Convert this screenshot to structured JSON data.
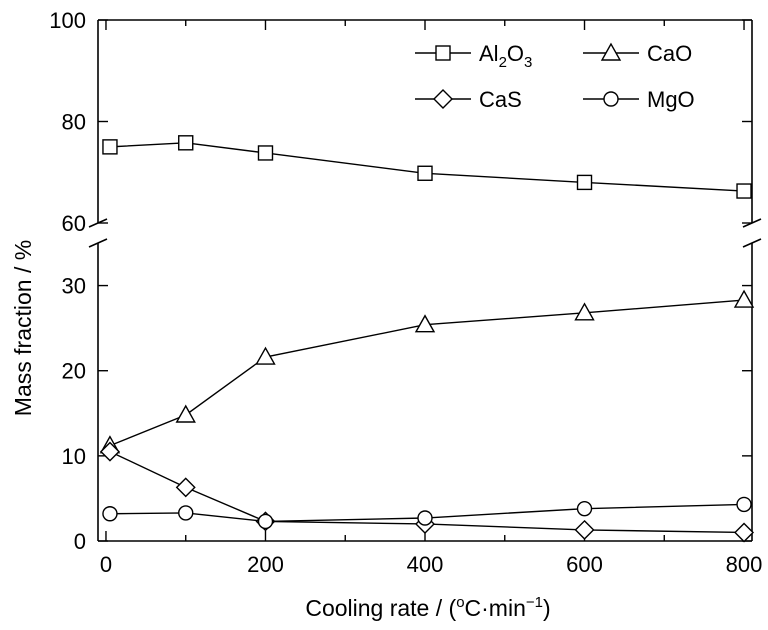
{
  "chart_data": {
    "type": "line",
    "xlabel": "Cooling rate / (",
    "xlabel_unit_sup": "o",
    "xlabel_unit_rest": "C·min",
    "xlabel_unit_exp": "−1",
    "xlabel_close": ")",
    "ylabel": "Mass fraction / %",
    "xlim": [
      -10,
      810
    ],
    "ylim_lower": [
      0,
      35
    ],
    "ylim_upper": [
      60,
      100
    ],
    "axis_break": true,
    "x_ticks": [
      "0",
      "200",
      "400",
      "600",
      "800"
    ],
    "y_ticks_lower": [
      "0",
      "10",
      "20",
      "30"
    ],
    "y_ticks_upper": [
      "60",
      "80",
      "100"
    ],
    "legend_position": "top-right",
    "x": [
      5,
      100,
      200,
      400,
      600,
      800
    ],
    "series": [
      {
        "name_main": "Al",
        "name_sub1": "2",
        "name_mid": "O",
        "name_sub2": "3",
        "marker": "square",
        "values": [
          75.0,
          75.8,
          73.8,
          69.8,
          68.0,
          66.3
        ]
      },
      {
        "name": "CaO",
        "marker": "triangle",
        "values": [
          11.2,
          14.8,
          21.6,
          25.4,
          26.8,
          28.3
        ]
      },
      {
        "name": "CaS",
        "marker": "diamond",
        "values": [
          10.5,
          6.3,
          2.3,
          2.0,
          1.3,
          1.0
        ]
      },
      {
        "name": "MgO",
        "marker": "circle",
        "values": [
          3.2,
          3.3,
          2.3,
          2.7,
          3.8,
          4.3
        ]
      }
    ]
  }
}
